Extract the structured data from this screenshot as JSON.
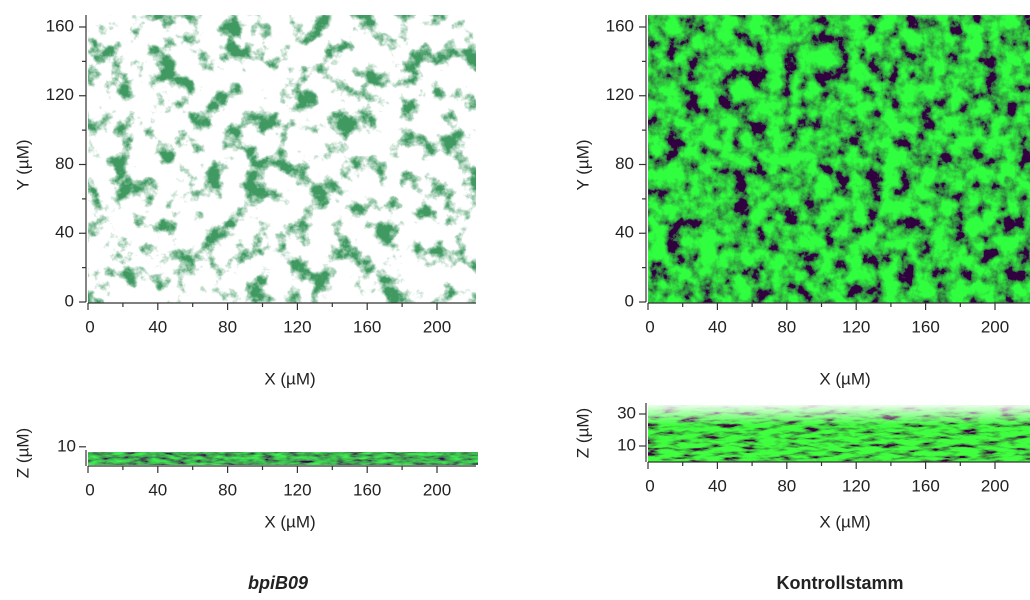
{
  "panels": [
    {
      "caption": "bpiB09",
      "top": {
        "x_label": "X (µM)",
        "y_label": "Y (µM)",
        "xticks": [
          0,
          40,
          80,
          120,
          160,
          200
        ],
        "yticks": [
          0,
          40,
          80,
          120,
          160
        ]
      },
      "side": {
        "x_label": "X (µM)",
        "z_label": "Z (µM)",
        "xticks": [
          0,
          40,
          80,
          120,
          160,
          200
        ],
        "zticks": [
          10
        ]
      }
    },
    {
      "caption": "Kontrollstamm",
      "top": {
        "x_label": "X (µM)",
        "y_label": "Y (µM)",
        "xticks": [
          0,
          40,
          80,
          120,
          160,
          200
        ],
        "yticks": [
          0,
          40,
          80,
          120,
          160
        ]
      },
      "side": {
        "x_label": "X (µM)",
        "z_label": "Z (µM)",
        "xticks": [
          0,
          40,
          80,
          120,
          160,
          200
        ],
        "zticks": [
          10,
          30
        ]
      }
    }
  ]
}
